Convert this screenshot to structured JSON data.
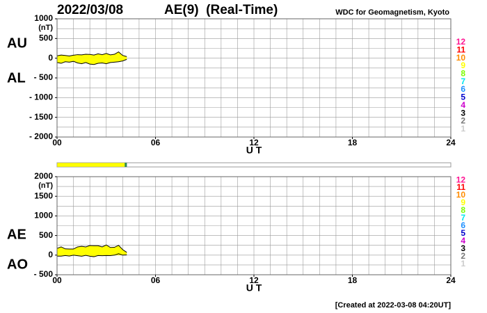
{
  "header": {
    "date": "2022/03/08",
    "title": "AE(9)  (Real-Time)",
    "source": "WDC for Geomagnetism, Kyoto"
  },
  "footer": "[Created at 2022-03-08 04:20UT]",
  "chart_data": [
    {
      "type": "area",
      "y_unit": "(nT)",
      "x_label": "U T",
      "x": [
        0,
        0.25,
        0.5,
        0.75,
        1,
        1.25,
        1.5,
        1.75,
        2,
        2.25,
        2.5,
        2.75,
        3,
        3.25,
        3.5,
        3.75,
        4,
        4.25
      ],
      "series": [
        {
          "name": "AU",
          "color": "#ffff00",
          "values": [
            60,
            80,
            70,
            55,
            75,
            90,
            85,
            100,
            95,
            80,
            110,
            90,
            120,
            85,
            100,
            160,
            70,
            40
          ]
        },
        {
          "name": "AL",
          "color": "#ffff00",
          "values": [
            -110,
            -130,
            -90,
            -100,
            -80,
            -120,
            -140,
            -110,
            -150,
            -160,
            -130,
            -120,
            -140,
            -110,
            -100,
            -90,
            -70,
            -30
          ]
        }
      ],
      "line_color": "#000000",
      "xlim": [
        0,
        24
      ],
      "xticks": [
        {
          "value": 0,
          "label": "00"
        },
        {
          "value": 6,
          "label": "06"
        },
        12,
        18,
        24
      ],
      "ylim": [
        -2000,
        1000
      ],
      "yticks": [
        {
          "value": -2000,
          "label": "- 2000"
        },
        {
          "value": -1500,
          "label": "- 1500"
        },
        {
          "value": -1000,
          "label": "- 1000"
        },
        {
          "value": -500,
          "label": "- 500"
        },
        0,
        500,
        1000
      ],
      "grid": true,
      "grid_minor": {
        "x": 1,
        "y": 250
      },
      "level_labels": [
        {
          "label": "12",
          "color": "#ff1493"
        },
        {
          "label": "11",
          "color": "#ff0000"
        },
        {
          "label": "10",
          "color": "#ff8c00"
        },
        {
          "label": "9",
          "color": "#ffff00"
        },
        {
          "label": "8",
          "color": "#7cfc00"
        },
        {
          "label": "7",
          "color": "#00e5ee"
        },
        {
          "label": "6",
          "color": "#1e90ff"
        },
        {
          "label": "5",
          "color": "#0000cd"
        },
        {
          "label": "4",
          "color": "#cc00cc"
        },
        {
          "label": "3",
          "color": "#000000"
        },
        {
          "label": "2",
          "color": "#777777"
        },
        {
          "label": "1",
          "color": "#cccccc"
        }
      ]
    },
    {
      "type": "area",
      "y_unit": "(nT)",
      "x_label": "U T",
      "x": [
        0,
        0.25,
        0.5,
        0.75,
        1,
        1.25,
        1.5,
        1.75,
        2,
        2.25,
        2.5,
        2.75,
        3,
        3.25,
        3.5,
        3.75,
        4,
        4.25
      ],
      "series": [
        {
          "name": "AE",
          "color": "#ffff00",
          "values": [
            170,
            210,
            160,
            155,
            155,
            210,
            225,
            210,
            245,
            240,
            240,
            210,
            260,
            195,
            200,
            250,
            140,
            70
          ]
        },
        {
          "name": "AO",
          "color": "#ffff00",
          "values": [
            -25,
            -25,
            -10,
            -22.5,
            -2.5,
            -15,
            -27.5,
            -5,
            -27.5,
            -40,
            -10,
            -15,
            -10,
            -12.5,
            0,
            35,
            0,
            5
          ]
        }
      ],
      "line_color": "#000000",
      "xlim": [
        0,
        24
      ],
      "xticks": [
        {
          "value": 0,
          "label": "00"
        },
        {
          "value": 6,
          "label": "06"
        },
        12,
        18,
        24
      ],
      "ylim": [
        -500,
        2000
      ],
      "yticks": [
        {
          "value": -500,
          "label": "- 500"
        },
        0,
        500,
        1000,
        1500,
        2000
      ],
      "grid": true,
      "grid_minor": {
        "x": 1,
        "y": 250
      },
      "level_labels": [
        {
          "label": "12",
          "color": "#ff1493"
        },
        {
          "label": "11",
          "color": "#ff0000"
        },
        {
          "label": "10",
          "color": "#ff8c00"
        },
        {
          "label": "9",
          "color": "#ffff00"
        },
        {
          "label": "8",
          "color": "#7cfc00"
        },
        {
          "label": "7",
          "color": "#00e5ee"
        },
        {
          "label": "6",
          "color": "#1e90ff"
        },
        {
          "label": "5",
          "color": "#0000cd"
        },
        {
          "label": "4",
          "color": "#cc00cc"
        },
        {
          "label": "3",
          "color": "#000000"
        },
        {
          "label": "2",
          "color": "#777777"
        },
        {
          "label": "1",
          "color": "#cccccc"
        }
      ]
    }
  ]
}
